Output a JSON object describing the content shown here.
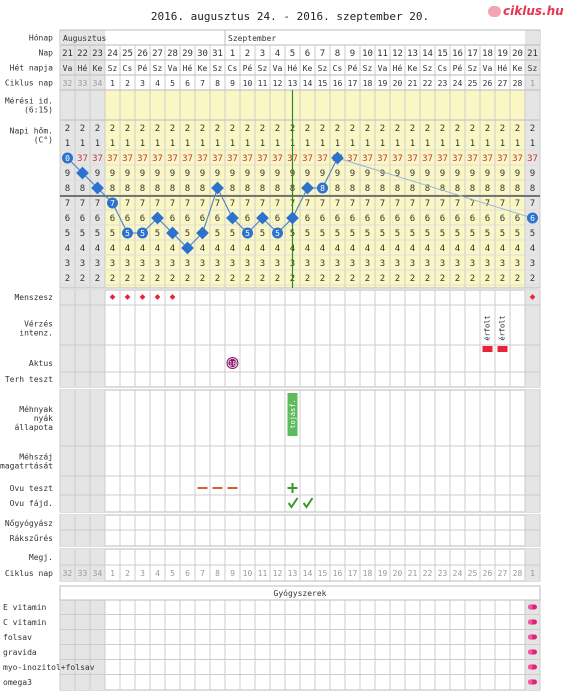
{
  "title": "2016. augusztus 24. - 2016. szeptember 20.",
  "logo": "ciklus.hu",
  "row_labels": {
    "honap": "Hónap",
    "nap": "Nap",
    "het_napja": "Hét napja",
    "ciklus_nap": "Ciklus nap",
    "meresi_id": [
      "Mérési id.",
      "(6:15)"
    ],
    "napi_hom": [
      "Napi hőm.",
      "(C°)"
    ],
    "menszesz": "Menszesz",
    "verzes": [
      "Vérzés",
      "intenz."
    ],
    "aktus": "Aktus",
    "terh_teszt": "Terh teszt",
    "mehnyak": [
      "Méhnyak",
      "nyák",
      "állapota"
    ],
    "mehszaj": [
      "Méhszáj",
      "magatrtását"
    ],
    "ovu_teszt": "Ovu teszt",
    "ovu_fajd": "Ovu fájd.",
    "nogyogyasz": "Nőgyógyász",
    "rakszures": "Rákszűrés",
    "megj": "Megj.",
    "ciklus_nap_bottom": "Ciklus nap"
  },
  "months": [
    {
      "label": "Augusztus",
      "start": 0
    },
    {
      "label": "Szeptember",
      "start": 11
    }
  ],
  "days": [
    "21",
    "22",
    "23",
    "24",
    "25",
    "26",
    "27",
    "28",
    "29",
    "30",
    "31",
    "1",
    "2",
    "3",
    "4",
    "5",
    "6",
    "7",
    "8",
    "9",
    "10",
    "11",
    "12",
    "13",
    "14",
    "15",
    "16",
    "17",
    "18",
    "19",
    "20",
    "21"
  ],
  "weekdays": [
    "Va",
    "Hé",
    "Ke",
    "Sz",
    "Cs",
    "Pé",
    "Sz",
    "Va",
    "Hé",
    "Ke",
    "Sz",
    "Cs",
    "Pé",
    "Sz",
    "Va",
    "Hé",
    "Ke",
    "Sz",
    "Cs",
    "Pé",
    "Sz",
    "Va",
    "Hé",
    "Ke",
    "Sz",
    "Cs",
    "Pé",
    "Sz",
    "Va",
    "Hé",
    "Ke",
    "Sz"
  ],
  "cycle_days": [
    "32",
    "33",
    "34",
    "1",
    "2",
    "3",
    "4",
    "5",
    "6",
    "7",
    "8",
    "9",
    "10",
    "11",
    "12",
    "13",
    "14",
    "15",
    "16",
    "17",
    "18",
    "19",
    "20",
    "21",
    "22",
    "23",
    "24",
    "25",
    "26",
    "27",
    "28",
    "1"
  ],
  "temp_scale": {
    "unit_digit": "2",
    "ones_digit": "1",
    "tenths_rows": [
      "37",
      "9",
      "8",
      "7",
      "6",
      "5",
      "4",
      "3",
      "2"
    ]
  },
  "chart_data": {
    "type": "line",
    "x": [
      "08-21",
      "08-22",
      "08-23",
      "08-24",
      "08-25",
      "08-26",
      "08-27",
      "08-28",
      "08-29",
      "08-30",
      "08-31",
      "09-01",
      "09-02",
      "09-03",
      "09-04",
      "09-05",
      "09-06",
      "09-07",
      "09-08",
      "09-09",
      "09-10",
      "09-11",
      "09-12",
      "09-13",
      "09-14",
      "09-15",
      "09-16",
      "09-17",
      "09-18",
      "09-19",
      "09-20",
      "09-21"
    ],
    "y": [
      37.0,
      36.9,
      36.8,
      36.7,
      36.5,
      36.5,
      36.6,
      36.5,
      36.4,
      36.5,
      36.8,
      36.6,
      36.5,
      36.6,
      36.5,
      36.6,
      36.8,
      36.8,
      37.0,
      null,
      null,
      null,
      null,
      null,
      null,
      null,
      null,
      null,
      null,
      null,
      null,
      36.6
    ],
    "coverline": 36.7,
    "ovulation_day": "09-05",
    "ylim": [
      36.2,
      37.2
    ]
  },
  "menses_days": [
    3,
    4,
    5,
    6,
    7,
    31
  ],
  "bleeding": {
    "label": "érfolt",
    "days": [
      28,
      29
    ]
  },
  "aktus": {
    "day": 11,
    "label": "18"
  },
  "mehnyak": {
    "day": 15,
    "label": "tojásf."
  },
  "ovu_test": {
    "negative_days": [
      9,
      10,
      11
    ],
    "positive_days": [
      15
    ]
  },
  "ovu_pain_days": [
    15,
    16
  ],
  "medication_section_title": "Gyógyszerek",
  "medications": [
    "E vitamin",
    "C vitamin",
    "folsav",
    "gravida",
    "myo-inozitol+folsav",
    "omega3"
  ],
  "colors": {
    "temp_line": "#4a80c2",
    "temp_dot": "#2b73cf",
    "menses": "#e8233a",
    "aktus": "#8b1a6b",
    "fertile_bg": "#fbf7c4",
    "grey_col": "#e5e5e5",
    "ovu_negative": "#d9602d",
    "ovu_positive": "#3a9a2a",
    "mehnyak": "#5dbb5d",
    "pill": "#e0207a"
  }
}
